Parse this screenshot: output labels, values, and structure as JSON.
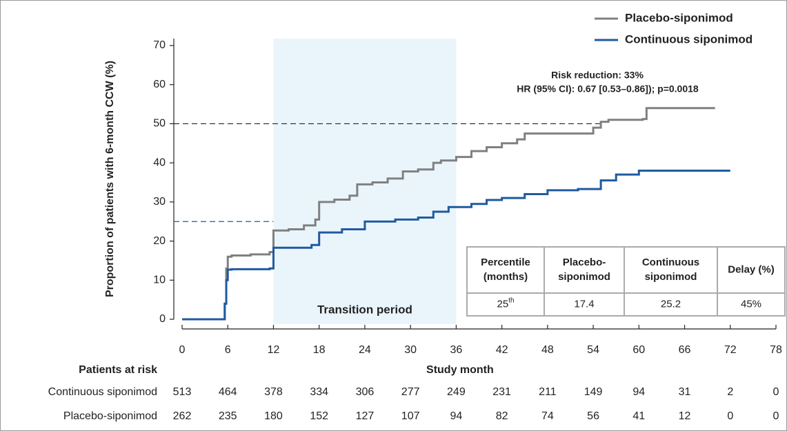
{
  "chart_data": {
    "type": "step",
    "ylabel": "Proportion of patients with 6-month CCW (%)",
    "xlabel": "Study month",
    "xlim": [
      0,
      78
    ],
    "xticks": [
      0,
      6,
      12,
      18,
      24,
      30,
      36,
      42,
      48,
      54,
      60,
      66,
      72,
      78
    ],
    "ylim": [
      0,
      70
    ],
    "yticks": [
      0,
      10,
      20,
      30,
      40,
      50,
      60,
      70
    ],
    "legend": "top-right",
    "series": [
      {
        "name": "Placebo-siponimod",
        "color": "#808080",
        "x": [
          0,
          5.6,
          5.8,
          6,
          6.5,
          9,
          11.5,
          12,
          14,
          16,
          17.5,
          18,
          20,
          22,
          23,
          25,
          27,
          29,
          31,
          33,
          34,
          36,
          38,
          40,
          42,
          44,
          45,
          53,
          54,
          55,
          56,
          60.5,
          61,
          70
        ],
        "values": [
          0,
          4,
          13,
          16,
          16.3,
          16.6,
          17.2,
          22.7,
          23,
          24,
          25.5,
          30,
          30.6,
          31.6,
          34.5,
          35,
          36,
          37.8,
          38.3,
          40,
          40.6,
          41.5,
          43,
          44,
          45,
          46,
          47.5,
          47.5,
          49,
          50.5,
          51,
          51.2,
          54,
          54
        ]
      },
      {
        "name": "Continuous siponimod",
        "color": "#1f5aa0",
        "x": [
          0,
          5.6,
          5.8,
          6,
          6.5,
          11.5,
          12,
          17,
          18,
          21,
          24,
          28,
          31,
          33,
          35,
          38,
          40,
          42,
          45,
          48,
          52,
          55,
          57,
          60,
          72
        ],
        "values": [
          0,
          4,
          10,
          12.7,
          12.8,
          13,
          18.3,
          19,
          22.2,
          23,
          25,
          25.5,
          26,
          27.5,
          28.7,
          29.5,
          30.5,
          31,
          32,
          33,
          33.3,
          35.5,
          37,
          38,
          38
        ]
      }
    ],
    "shaded_region": {
      "x": [
        12,
        36
      ],
      "label": "Transition period",
      "color": "#eaf5fb"
    },
    "reference_lines": [
      {
        "y": 50,
        "x_end": 55,
        "color": "#222222"
      },
      {
        "y": 25,
        "x_end": 12,
        "color": "#1f5aa0"
      }
    ],
    "annotations": [
      {
        "text": "Risk reduction: 33%",
        "color": "#1f5aa0"
      },
      {
        "text": "HR (95% CI): 0.67 [0.53–0.86]); p=0.0018",
        "color": "#222222"
      }
    ],
    "inset_table": {
      "header": [
        [
          "Percentile",
          "(months)"
        ],
        [
          "Placebo-",
          "siponimod"
        ],
        [
          "Continuous",
          "siponimod"
        ],
        [
          "Delay (%)"
        ]
      ],
      "rows": [
        [
          {
            "base": "25",
            "sup": "th"
          },
          "17.4",
          "25.2",
          "45%"
        ]
      ]
    },
    "risk_table": {
      "title": "Patients at risk",
      "rows": [
        {
          "name": "Continuous siponimod",
          "color": "#1f5aa0",
          "values": [
            513,
            464,
            378,
            334,
            306,
            277,
            249,
            231,
            211,
            149,
            94,
            31,
            2,
            0
          ]
        },
        {
          "name": "Placebo-siponimod",
          "color": "#808080",
          "values": [
            262,
            235,
            180,
            152,
            127,
            107,
            94,
            82,
            74,
            56,
            41,
            12,
            0,
            0
          ]
        }
      ]
    }
  }
}
